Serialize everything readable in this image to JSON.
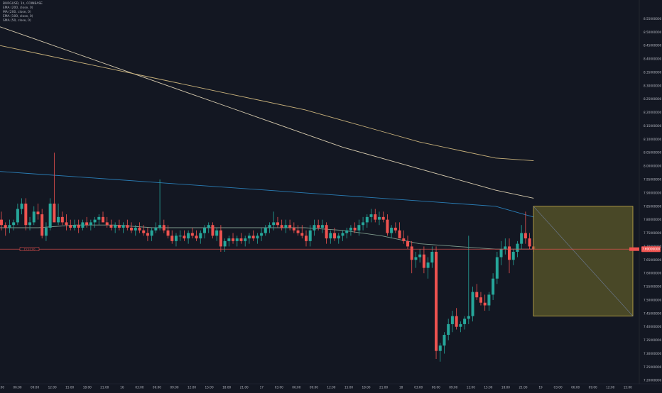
{
  "legend": {
    "symbol": "BURGUSD, 1h, COINBASE",
    "indicators": [
      "EMA (200, close, 0)",
      "MA (200, close, 0)",
      "EMA (100, close, 0)",
      "SMA (50, close, 0)"
    ]
  },
  "price_axis": {
    "currency": "USD",
    "ticks": [
      "8.60000000",
      "8.55000000",
      "8.50000000",
      "8.45000000",
      "8.40000000",
      "8.35000000",
      "8.30000000",
      "8.25000000",
      "8.20000000",
      "8.15000000",
      "8.10000000",
      "8.05000000",
      "8.00000000",
      "7.95000000",
      "7.90000000",
      "7.85000000",
      "7.80000000",
      "7.75000000",
      "7.70000000",
      "7.65000000",
      "7.60000000",
      "7.55000000",
      "7.50000000",
      "7.45000000",
      "7.40000000",
      "7.35000000",
      "7.30000000",
      "7.25000000",
      "7.20000000"
    ],
    "current_price_label": "7.69000000",
    "crosshair_label": "15:31:00"
  },
  "time_axis": {
    "ticks": [
      "03:00",
      "06:00",
      "09:00",
      "12:00",
      "15:00",
      "18:00",
      "21:00",
      "16",
      "03:00",
      "06:00",
      "09:00",
      "12:00",
      "15:00",
      "18:00",
      "21:00",
      "17",
      "03:00",
      "06:00",
      "09:00",
      "12:00",
      "15:00",
      "18:00",
      "21:00",
      "18",
      "03:00",
      "06:00",
      "09:00",
      "12:00",
      "15:00",
      "18:00",
      "21:00",
      "19",
      "03:00",
      "06:00",
      "09:00",
      "12:00",
      "15:00"
    ]
  },
  "colors": {
    "background": "#131722",
    "up": "#26a69a",
    "down": "#ef5350",
    "ema200": "#d5c9ad",
    "ma200": "#c7b07a",
    "ema100": "#2a7db5",
    "sma50": "#7e9b8c",
    "box_fill": "#5c5a2a",
    "box_stroke": "#c9b04b",
    "price_line": "#ef5350"
  },
  "chart_data": {
    "type": "candlestick",
    "title": "BURGUSD, 1h, COINBASE",
    "y_unit": "USD",
    "ylim": [
      7.19,
      8.62
    ],
    "candles_ohlc": [
      [
        7.8,
        7.83,
        7.76,
        7.78
      ],
      [
        7.78,
        7.79,
        7.74,
        7.77
      ],
      [
        7.77,
        7.8,
        7.75,
        7.78
      ],
      [
        7.78,
        7.8,
        7.76,
        7.79
      ],
      [
        7.79,
        7.86,
        7.78,
        7.84
      ],
      [
        7.84,
        7.88,
        7.82,
        7.86
      ],
      [
        7.86,
        7.88,
        7.76,
        7.78
      ],
      [
        7.78,
        7.81,
        7.76,
        7.79
      ],
      [
        7.79,
        7.85,
        7.78,
        7.83
      ],
      [
        7.83,
        7.86,
        7.8,
        7.82
      ],
      [
        7.82,
        7.84,
        7.73,
        7.74
      ],
      [
        7.74,
        7.79,
        7.72,
        7.77
      ],
      [
        7.77,
        7.88,
        7.76,
        7.86
      ],
      [
        7.86,
        8.05,
        7.84,
        7.79
      ],
      [
        7.79,
        7.86,
        7.78,
        7.81
      ],
      [
        7.81,
        7.83,
        7.78,
        7.79
      ],
      [
        7.79,
        7.82,
        7.76,
        7.78
      ],
      [
        7.78,
        7.8,
        7.76,
        7.77
      ],
      [
        7.77,
        7.8,
        7.76,
        7.78
      ],
      [
        7.78,
        7.8,
        7.75,
        7.77
      ],
      [
        7.77,
        7.8,
        7.76,
        7.79
      ],
      [
        7.79,
        7.81,
        7.77,
        7.78
      ],
      [
        7.78,
        7.8,
        7.76,
        7.79
      ],
      [
        7.79,
        7.81,
        7.77,
        7.8
      ],
      [
        7.8,
        7.82,
        7.78,
        7.81
      ],
      [
        7.81,
        7.83,
        7.79,
        7.79
      ],
      [
        7.79,
        7.81,
        7.77,
        7.78
      ],
      [
        7.78,
        7.8,
        7.76,
        7.77
      ],
      [
        7.77,
        7.79,
        7.75,
        7.78
      ],
      [
        7.78,
        7.8,
        7.76,
        7.77
      ],
      [
        7.77,
        7.79,
        7.75,
        7.78
      ],
      [
        7.78,
        7.8,
        7.76,
        7.77
      ],
      [
        7.77,
        7.79,
        7.75,
        7.76
      ],
      [
        7.76,
        7.78,
        7.74,
        7.77
      ],
      [
        7.77,
        7.79,
        7.75,
        7.76
      ],
      [
        7.76,
        7.78,
        7.74,
        7.75
      ],
      [
        7.75,
        7.77,
        7.72,
        7.74
      ],
      [
        7.74,
        7.77,
        7.72,
        7.76
      ],
      [
        7.76,
        7.79,
        7.75,
        7.77
      ],
      [
        7.77,
        7.95,
        7.76,
        7.78
      ],
      [
        7.78,
        7.8,
        7.75,
        7.76
      ],
      [
        7.76,
        7.78,
        7.73,
        7.74
      ],
      [
        7.74,
        7.76,
        7.71,
        7.72
      ],
      [
        7.72,
        7.75,
        7.7,
        7.74
      ],
      [
        7.74,
        7.76,
        7.72,
        7.74
      ],
      [
        7.74,
        7.76,
        7.72,
        7.73
      ],
      [
        7.73,
        7.76,
        7.71,
        7.75
      ],
      [
        7.75,
        7.77,
        7.73,
        7.74
      ],
      [
        7.74,
        7.76,
        7.72,
        7.73
      ],
      [
        7.73,
        7.76,
        7.71,
        7.75
      ],
      [
        7.75,
        7.78,
        7.73,
        7.77
      ],
      [
        7.77,
        7.79,
        7.75,
        7.78
      ],
      [
        7.78,
        7.79,
        7.73,
        7.74
      ],
      [
        7.74,
        7.77,
        7.72,
        7.76
      ],
      [
        7.76,
        7.78,
        7.68,
        7.7
      ],
      [
        7.7,
        7.73,
        7.68,
        7.72
      ],
      [
        7.72,
        7.74,
        7.7,
        7.73
      ],
      [
        7.73,
        7.75,
        7.71,
        7.72
      ],
      [
        7.72,
        7.74,
        7.7,
        7.73
      ],
      [
        7.73,
        7.75,
        7.71,
        7.72
      ],
      [
        7.72,
        7.74,
        7.7,
        7.73
      ],
      [
        7.73,
        7.75,
        7.71,
        7.74
      ],
      [
        7.74,
        7.76,
        7.72,
        7.73
      ],
      [
        7.73,
        7.75,
        7.71,
        7.74
      ],
      [
        7.74,
        7.77,
        7.72,
        7.75
      ],
      [
        7.75,
        7.78,
        7.74,
        7.77
      ],
      [
        7.77,
        7.79,
        7.75,
        7.78
      ],
      [
        7.78,
        7.83,
        7.76,
        7.79
      ],
      [
        7.79,
        7.81,
        7.77,
        7.78
      ],
      [
        7.78,
        7.8,
        7.76,
        7.77
      ],
      [
        7.77,
        7.8,
        7.75,
        7.78
      ],
      [
        7.78,
        7.8,
        7.76,
        7.77
      ],
      [
        7.77,
        7.79,
        7.75,
        7.76
      ],
      [
        7.76,
        7.78,
        7.74,
        7.75
      ],
      [
        7.75,
        7.78,
        7.73,
        7.74
      ],
      [
        7.74,
        7.76,
        7.7,
        7.72
      ],
      [
        7.72,
        7.78,
        7.7,
        7.76
      ],
      [
        7.76,
        7.8,
        7.74,
        7.78
      ],
      [
        7.78,
        7.8,
        7.76,
        7.77
      ],
      [
        7.77,
        7.8,
        7.75,
        7.78
      ],
      [
        7.78,
        7.79,
        7.71,
        7.73
      ],
      [
        7.73,
        7.76,
        7.71,
        7.75
      ],
      [
        7.75,
        7.77,
        7.72,
        7.73
      ],
      [
        7.73,
        7.75,
        7.71,
        7.74
      ],
      [
        7.74,
        7.76,
        7.72,
        7.75
      ],
      [
        7.75,
        7.77,
        7.73,
        7.76
      ],
      [
        7.76,
        7.78,
        7.74,
        7.77
      ],
      [
        7.77,
        7.79,
        7.75,
        7.76
      ],
      [
        7.76,
        7.8,
        7.74,
        7.78
      ],
      [
        7.78,
        7.81,
        7.76,
        7.79
      ],
      [
        7.79,
        7.82,
        7.77,
        7.81
      ],
      [
        7.81,
        7.84,
        7.79,
        7.82
      ],
      [
        7.82,
        7.84,
        7.79,
        7.8
      ],
      [
        7.8,
        7.83,
        7.78,
        7.81
      ],
      [
        7.81,
        7.83,
        7.79,
        7.8
      ],
      [
        7.8,
        7.82,
        7.74,
        7.75
      ],
      [
        7.75,
        7.78,
        7.73,
        7.77
      ],
      [
        7.77,
        7.79,
        7.75,
        7.76
      ],
      [
        7.76,
        7.79,
        7.74,
        7.73
      ],
      [
        7.73,
        7.76,
        7.71,
        7.72
      ],
      [
        7.72,
        7.74,
        7.69,
        7.7
      ],
      [
        7.7,
        7.72,
        7.6,
        7.65
      ],
      [
        7.65,
        7.68,
        7.62,
        7.66
      ],
      [
        7.66,
        7.69,
        7.64,
        7.67
      ],
      [
        7.67,
        7.7,
        7.6,
        7.62
      ],
      [
        7.62,
        7.66,
        7.58,
        7.64
      ],
      [
        7.64,
        7.7,
        7.62,
        7.68
      ],
      [
        7.68,
        7.7,
        7.28,
        7.31
      ],
      [
        7.31,
        7.34,
        7.27,
        7.33
      ],
      [
        7.33,
        7.38,
        7.3,
        7.37
      ],
      [
        7.37,
        7.43,
        7.35,
        7.41
      ],
      [
        7.41,
        7.46,
        7.38,
        7.44
      ],
      [
        7.44,
        7.47,
        7.39,
        7.4
      ],
      [
        7.4,
        7.42,
        7.38,
        7.41
      ],
      [
        7.41,
        7.44,
        7.39,
        7.43
      ],
      [
        7.43,
        7.74,
        7.41,
        7.44
      ],
      [
        7.44,
        7.55,
        7.42,
        7.53
      ],
      [
        7.53,
        7.56,
        7.5,
        7.51
      ],
      [
        7.51,
        7.53,
        7.48,
        7.49
      ],
      [
        7.49,
        7.52,
        7.46,
        7.48
      ],
      [
        7.48,
        7.53,
        7.46,
        7.52
      ],
      [
        7.52,
        7.6,
        7.5,
        7.58
      ],
      [
        7.58,
        7.68,
        7.56,
        7.66
      ],
      [
        7.66,
        7.72,
        7.63,
        7.69
      ],
      [
        7.69,
        7.73,
        7.67,
        7.7
      ],
      [
        7.7,
        7.73,
        7.6,
        7.65
      ],
      [
        7.65,
        7.69,
        7.63,
        7.68
      ],
      [
        7.68,
        7.72,
        7.66,
        7.71
      ],
      [
        7.71,
        7.78,
        7.69,
        7.75
      ],
      [
        7.75,
        7.83,
        7.71,
        7.73
      ],
      [
        7.73,
        7.75,
        7.69,
        7.7
      ],
      [
        7.7,
        7.73,
        7.68,
        7.69
      ]
    ],
    "moving_averages": [
      {
        "name": "EMA (200, close, 0)",
        "values": [
          8.52,
          8.47,
          8.42,
          8.37,
          8.32,
          8.27,
          8.22,
          8.17,
          8.12,
          8.07,
          8.03,
          7.99,
          7.95,
          7.91,
          7.88
        ]
      },
      {
        "name": "MA (200, close, 0)",
        "values": [
          8.45,
          8.42,
          8.39,
          8.36,
          8.33,
          8.3,
          8.27,
          8.24,
          8.21,
          8.17,
          8.13,
          8.09,
          8.06,
          8.03,
          8.02
        ]
      },
      {
        "name": "EMA (100, close, 0)",
        "values": [
          7.98,
          7.97,
          7.96,
          7.95,
          7.94,
          7.93,
          7.92,
          7.91,
          7.9,
          7.89,
          7.88,
          7.87,
          7.86,
          7.85,
          7.81
        ]
      },
      {
        "name": "SMA (50, close, 0)",
        "values": [
          7.77,
          7.77,
          7.78,
          7.78,
          7.77,
          7.77,
          7.77,
          7.77,
          7.77,
          7.76,
          7.74,
          7.71,
          7.7,
          7.69,
          7.69
        ]
      }
    ],
    "position_box": {
      "top": 7.85,
      "bottom": 7.44,
      "entry": 7.69
    },
    "current_price": 7.69,
    "grid": false
  }
}
